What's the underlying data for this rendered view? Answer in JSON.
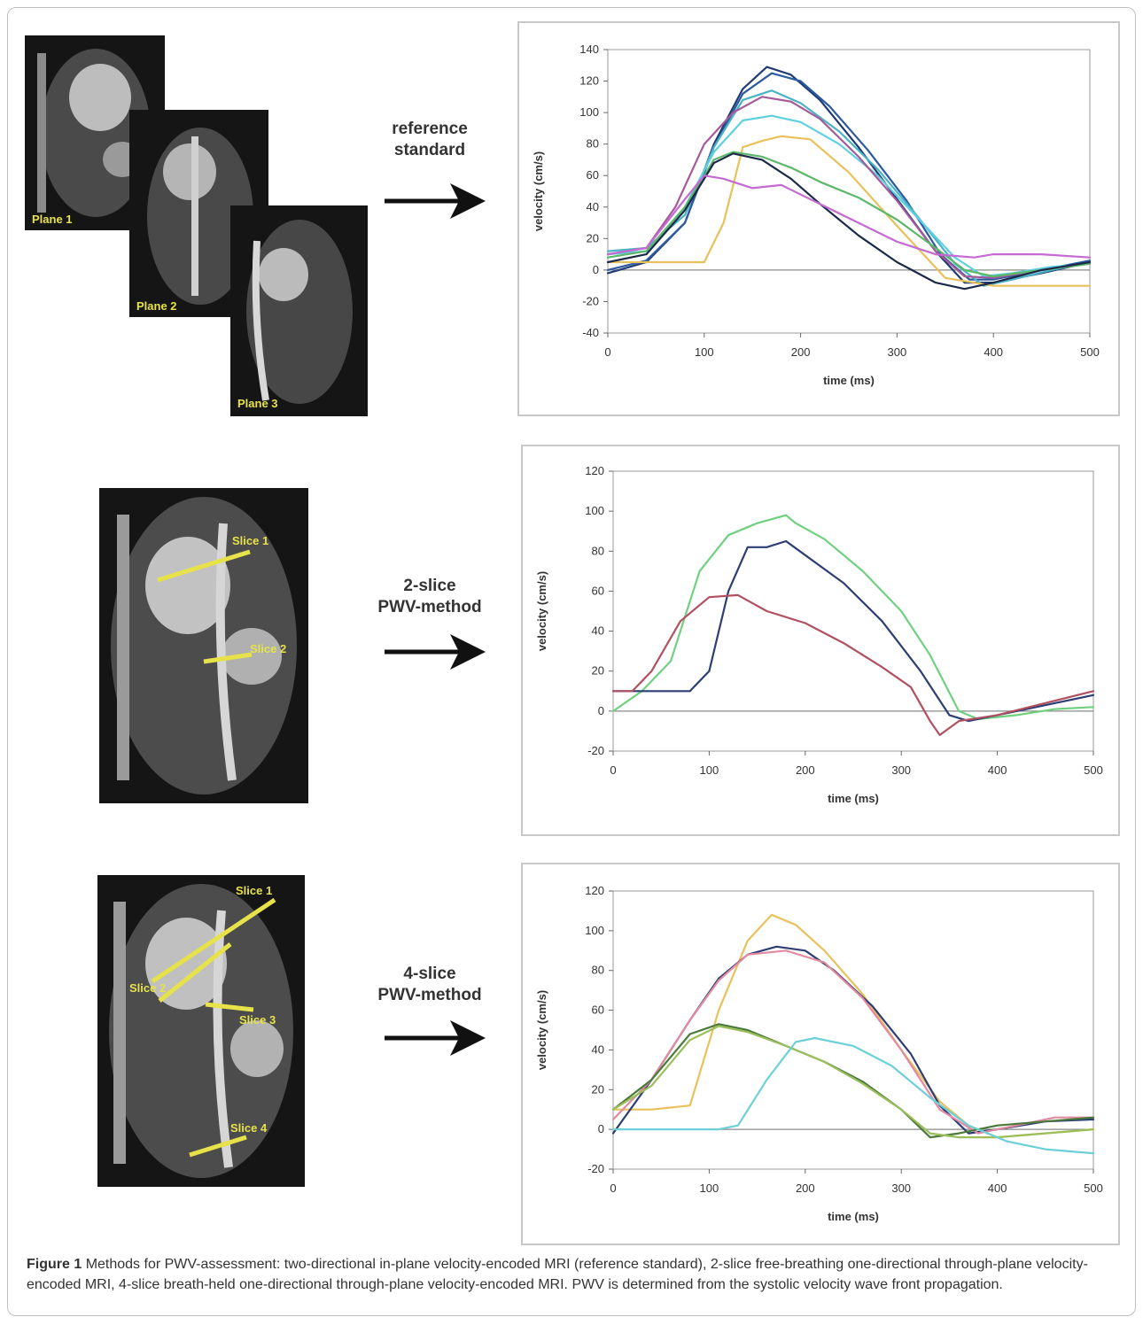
{
  "panels": [
    {
      "id": "reference",
      "method_lines": [
        "reference",
        "standard"
      ],
      "mri_labels": [
        "Plane 1",
        "Plane 2",
        "Plane 3"
      ],
      "chart": {
        "ylabel": "velocity (cm/s)",
        "xlabel": "time (ms)"
      }
    },
    {
      "id": "two-slice",
      "method_lines": [
        "2-slice",
        "PWV-method"
      ],
      "mri_labels": [
        "Slice 1",
        "Slice 2"
      ],
      "chart": {
        "ylabel": "velocity (cm/s)",
        "xlabel": "time (ms)"
      }
    },
    {
      "id": "four-slice",
      "method_lines": [
        "4-slice",
        "PWV-method"
      ],
      "mri_labels": [
        "Slice 1",
        "Slice 2",
        "Slice 3",
        "Slice 4"
      ],
      "chart": {
        "ylabel": "velocity (cm/s)",
        "xlabel": "time (ms)"
      }
    }
  ],
  "caption": {
    "label": "Figure 1",
    "text": "Methods for PWV-assessment: two-directional in-plane velocity-encoded MRI (reference standard), 2-slice free-breathing one-directional through-plane velocity-encoded MRI, 4-slice breath-held one-directional through-plane velocity-encoded MRI. PWV is determined from the systolic velocity wave front propagation."
  },
  "chart_data": [
    {
      "type": "line",
      "xlabel": "time (ms)",
      "ylabel": "velocity (cm/s)",
      "xlim": [
        0,
        500
      ],
      "ylim": [
        -40,
        140
      ],
      "xticks": [
        0,
        100,
        200,
        300,
        400,
        500
      ],
      "yticks": [
        -40,
        -20,
        0,
        20,
        40,
        60,
        80,
        100,
        120,
        140
      ],
      "series": [
        {
          "color": "#1f3b73",
          "x": [
            0,
            40,
            80,
            110,
            140,
            165,
            190,
            220,
            260,
            300,
            340,
            370,
            400,
            450,
            500
          ],
          "y": [
            -2,
            5,
            30,
            80,
            115,
            129,
            124,
            108,
            78,
            45,
            12,
            -8,
            -8,
            -2,
            5
          ]
        },
        {
          "color": "#2c5aa0",
          "x": [
            0,
            40,
            80,
            110,
            140,
            170,
            200,
            230,
            270,
            310,
            345,
            375,
            400,
            450,
            500
          ],
          "y": [
            0,
            6,
            30,
            78,
            112,
            125,
            120,
            104,
            76,
            44,
            10,
            -6,
            -6,
            0,
            6
          ]
        },
        {
          "color": "#4bb3c6",
          "x": [
            0,
            40,
            80,
            110,
            140,
            170,
            200,
            240,
            280,
            320,
            360,
            390,
            420,
            460,
            500
          ],
          "y": [
            12,
            14,
            35,
            78,
            108,
            114,
            106,
            88,
            64,
            35,
            4,
            -10,
            -6,
            0,
            5
          ]
        },
        {
          "color": "#5fd0e0",
          "x": [
            0,
            40,
            80,
            110,
            140,
            170,
            200,
            240,
            280,
            320,
            360,
            390,
            420,
            460,
            500
          ],
          "y": [
            10,
            12,
            40,
            75,
            95,
            98,
            94,
            80,
            60,
            34,
            8,
            -4,
            -2,
            2,
            4
          ]
        },
        {
          "color": "#a55a9a",
          "x": [
            0,
            40,
            70,
            100,
            130,
            160,
            190,
            220,
            260,
            300,
            340,
            370,
            400,
            450,
            500
          ],
          "y": [
            10,
            14,
            40,
            80,
            100,
            110,
            107,
            96,
            72,
            44,
            12,
            -4,
            -5,
            0,
            4
          ]
        },
        {
          "color": "#e8c15a",
          "x": [
            0,
            50,
            100,
            120,
            140,
            160,
            180,
            210,
            250,
            300,
            350,
            400,
            450,
            500
          ],
          "y": [
            5,
            5,
            5,
            30,
            78,
            82,
            85,
            83,
            62,
            28,
            -5,
            -10,
            -10,
            -10
          ]
        },
        {
          "color": "#5bb86a",
          "x": [
            0,
            40,
            80,
            110,
            130,
            160,
            190,
            220,
            260,
            300,
            340,
            370,
            400,
            450,
            500
          ],
          "y": [
            8,
            12,
            40,
            70,
            75,
            72,
            65,
            56,
            46,
            32,
            14,
            0,
            -4,
            0,
            4
          ]
        },
        {
          "color": "#1c2a4a",
          "x": [
            0,
            40,
            80,
            110,
            130,
            160,
            190,
            220,
            260,
            300,
            340,
            370,
            400,
            450,
            500
          ],
          "y": [
            5,
            10,
            38,
            68,
            74,
            70,
            58,
            42,
            22,
            5,
            -8,
            -12,
            -8,
            0,
            5
          ]
        },
        {
          "color": "#c46ad2",
          "x": [
            0,
            40,
            80,
            100,
            120,
            150,
            180,
            220,
            260,
            300,
            340,
            380,
            400,
            450,
            500
          ],
          "y": [
            10,
            14,
            45,
            60,
            58,
            52,
            54,
            42,
            30,
            18,
            10,
            8,
            10,
            10,
            8
          ]
        }
      ]
    },
    {
      "type": "line",
      "xlabel": "time (ms)",
      "ylabel": "velocity (cm/s)",
      "xlim": [
        0,
        500
      ],
      "ylim": [
        -20,
        120
      ],
      "xticks": [
        0,
        100,
        200,
        300,
        400,
        500
      ],
      "yticks": [
        -20,
        0,
        20,
        40,
        60,
        80,
        100,
        120
      ],
      "series": [
        {
          "color": "#6fd17f",
          "x": [
            0,
            30,
            60,
            90,
            120,
            150,
            180,
            190,
            220,
            260,
            300,
            330,
            360,
            380,
            420,
            460,
            500
          ],
          "y": [
            0,
            10,
            25,
            70,
            88,
            94,
            98,
            94,
            86,
            70,
            50,
            28,
            0,
            -4,
            -2,
            1,
            2
          ]
        },
        {
          "color": "#2c3e75",
          "x": [
            0,
            40,
            80,
            100,
            120,
            140,
            160,
            180,
            200,
            240,
            280,
            320,
            350,
            370,
            420,
            500
          ],
          "y": [
            10,
            10,
            10,
            20,
            60,
            82,
            82,
            85,
            78,
            64,
            45,
            20,
            -2,
            -5,
            0,
            8
          ]
        },
        {
          "color": "#b05060",
          "x": [
            0,
            20,
            40,
            70,
            100,
            130,
            160,
            200,
            240,
            280,
            310,
            330,
            340,
            360,
            400,
            450,
            500
          ],
          "y": [
            10,
            10,
            20,
            45,
            57,
            58,
            50,
            44,
            34,
            22,
            12,
            -5,
            -12,
            -5,
            -2,
            4,
            10
          ]
        }
      ]
    },
    {
      "type": "line",
      "xlabel": "time (ms)",
      "ylabel": "velocity (cm/s)",
      "xlim": [
        0,
        500
      ],
      "ylim": [
        -20,
        120
      ],
      "xticks": [
        0,
        100,
        200,
        300,
        400,
        500
      ],
      "yticks": [
        -20,
        0,
        20,
        40,
        60,
        80,
        100,
        120
      ],
      "series": [
        {
          "color": "#e8c15a",
          "x": [
            0,
            40,
            80,
            110,
            140,
            165,
            190,
            220,
            260,
            300,
            340,
            370,
            400,
            450,
            500
          ],
          "y": [
            10,
            10,
            12,
            60,
            95,
            108,
            103,
            90,
            68,
            40,
            14,
            2,
            -4,
            -2,
            0
          ]
        },
        {
          "color": "#2c3e75",
          "x": [
            0,
            40,
            80,
            110,
            140,
            170,
            200,
            230,
            270,
            310,
            340,
            370,
            400,
            450,
            500
          ],
          "y": [
            -2,
            25,
            55,
            76,
            88,
            92,
            90,
            80,
            62,
            38,
            12,
            -2,
            0,
            4,
            5
          ]
        },
        {
          "color": "#e28aa0",
          "x": [
            0,
            40,
            80,
            110,
            140,
            180,
            220,
            260,
            300,
            340,
            380,
            420,
            460,
            500
          ],
          "y": [
            5,
            25,
            55,
            75,
            88,
            90,
            84,
            66,
            40,
            10,
            -2,
            2,
            6,
            6
          ]
        },
        {
          "color": "#4a7a3a",
          "x": [
            0,
            40,
            80,
            110,
            140,
            180,
            220,
            260,
            300,
            330,
            360,
            400,
            450,
            500
          ],
          "y": [
            10,
            25,
            48,
            53,
            50,
            42,
            34,
            24,
            10,
            -4,
            -2,
            2,
            4,
            6
          ]
        },
        {
          "color": "#9abf5a",
          "x": [
            0,
            40,
            80,
            110,
            140,
            180,
            220,
            260,
            300,
            330,
            360,
            400,
            450,
            500
          ],
          "y": [
            10,
            22,
            45,
            52,
            49,
            42,
            34,
            23,
            10,
            -2,
            -4,
            -4,
            -2,
            0
          ]
        },
        {
          "color": "#6cd0d8",
          "x": [
            0,
            60,
            110,
            130,
            160,
            190,
            210,
            250,
            290,
            330,
            370,
            410,
            450,
            500
          ],
          "y": [
            0,
            0,
            0,
            2,
            25,
            44,
            46,
            42,
            32,
            16,
            2,
            -6,
            -10,
            -12
          ]
        }
      ]
    }
  ]
}
